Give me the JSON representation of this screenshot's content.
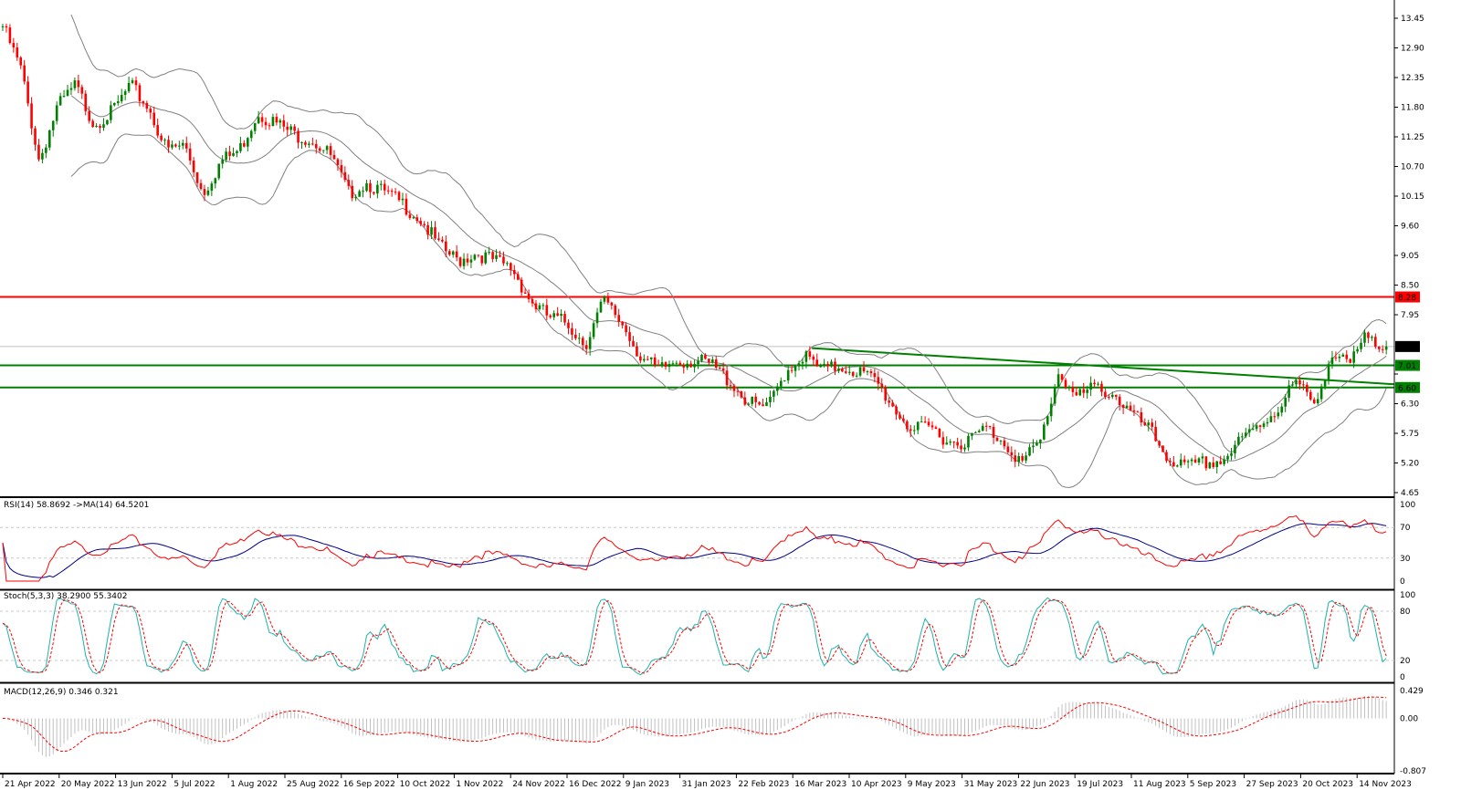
{
  "chart_data": {
    "type": "candlestick",
    "price_axis": {
      "ticks": [
        "13.45",
        "12.90",
        "12.35",
        "11.80",
        "11.25",
        "10.70",
        "10.15",
        "9.60",
        "9.05",
        "8.50",
        "7.95",
        "7.36",
        "6.85",
        "6.30",
        "5.75",
        "5.20",
        "4.65"
      ],
      "ylim": [
        4.65,
        13.45
      ]
    },
    "date_ticks": [
      "21 Apr 2022",
      "20 May 2022",
      "13 Jun 2022",
      "5 Jul 2022",
      "1 Aug 2022",
      "25 Aug 2022",
      "16 Sep 2022",
      "10 Oct 2022",
      "1 Nov 2022",
      "24 Nov 2022",
      "16 Dec 2022",
      "9 Jan 2023",
      "31 Jan 2023",
      "22 Feb 2023",
      "16 Mar 2023",
      "10 Apr 2023",
      "9 May 2023",
      "31 May 2023",
      "22 Jun 2023",
      "19 Jul 2023",
      "11 Aug 2023",
      "5 Sep 2023",
      "27 Sep 2023",
      "20 Oct 2023",
      "14 Nov 2023"
    ],
    "approx_closes": [
      13.3,
      12.5,
      10.8,
      11.8,
      12.2,
      11.5,
      11.7,
      12.2,
      11.8,
      11.0,
      11.1,
      10.2,
      10.8,
      11.0,
      11.7,
      11.5,
      11.3,
      11.2,
      10.9,
      10.2,
      10.4,
      10.2,
      10.0,
      9.7,
      9.2,
      8.95,
      9.1,
      8.95,
      8.8,
      8.2,
      7.9,
      7.8,
      7.4,
      8.2,
      7.8,
      7.2,
      6.9,
      7.1,
      7.1,
      7.0,
      6.7,
      6.3,
      6.2,
      6.9,
      7.2,
      6.9,
      7.0,
      6.9,
      6.7,
      6.2,
      5.8,
      5.85,
      5.6,
      5.6,
      5.85,
      5.6,
      5.2,
      5.6,
      6.9,
      6.4,
      6.6,
      6.5,
      6.1,
      5.8,
      5.3,
      5.1,
      5.2,
      5.25,
      5.6,
      5.9,
      6.2,
      6.7,
      6.3,
      7.2,
      7.0,
      7.6,
      7.36
    ],
    "current_price": "7.36",
    "levels": [
      {
        "value": "8.28",
        "color": "#ff0000"
      },
      {
        "value": "7.01",
        "color": "#008000"
      },
      {
        "value": "6.60",
        "color": "#008000"
      }
    ],
    "trendline": {
      "from": [
        "16 Mar 2023",
        7.33
      ],
      "to": [
        "14 Nov 2023",
        6.66
      ],
      "color": "#008000"
    },
    "overlays": "Bollinger Bands",
    "colors": {
      "up": "#008000",
      "down": "#ff0000",
      "bands": "#808080"
    },
    "indicators": {
      "rsi": {
        "label": "RSI(14) 58.8692  ->MA(14) 64.5201",
        "ticks": [
          "100",
          "70",
          "30",
          "0"
        ],
        "ylim": [
          0,
          100
        ]
      },
      "stoch": {
        "label": "Stoch(5,3,3) 38.2900 55.3402",
        "ticks": [
          "100",
          "80",
          "20",
          "0"
        ],
        "ylim": [
          0,
          100
        ]
      },
      "macd": {
        "label": "MACD(12,26,9) 0.346 0.321",
        "ticks": [
          "0.429",
          "0.00",
          "-0.807"
        ],
        "ylim": [
          -0.807,
          0.429
        ]
      }
    }
  }
}
